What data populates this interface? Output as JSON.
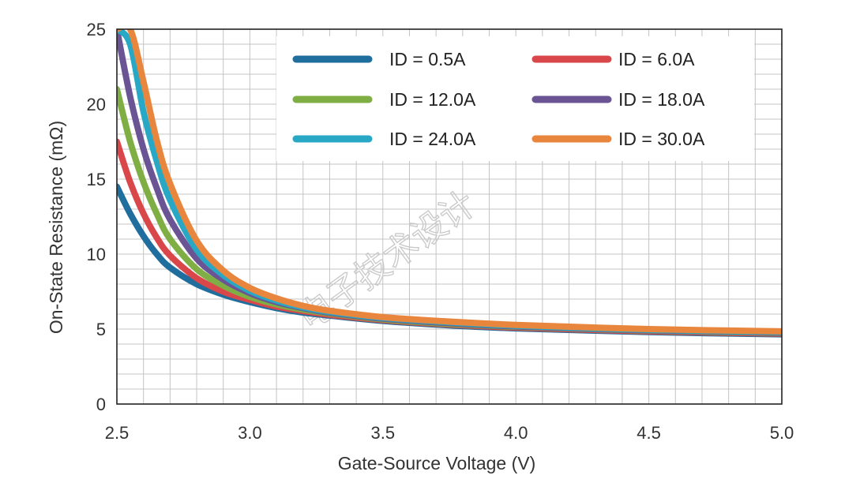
{
  "chart_data": {
    "type": "line",
    "title": "",
    "xlabel": "Gate-Source Voltage (V)",
    "ylabel": "On-State Resistance (mΩ)",
    "xlim": [
      2.5,
      5.0
    ],
    "ylim": [
      0,
      25
    ],
    "x_ticks": [
      "2.5",
      "3.0",
      "3.5",
      "4.0",
      "4.5",
      "5.0"
    ],
    "y_ticks": [
      "0",
      "5",
      "10",
      "15",
      "20",
      "25"
    ],
    "grid": true,
    "legend_position": "top-right",
    "x": [
      2.5,
      2.55,
      2.6,
      2.65,
      2.7,
      2.8,
      2.9,
      3.0,
      3.1,
      3.2,
      3.3,
      3.5,
      3.75,
      4.0,
      4.5,
      5.0
    ],
    "series": [
      {
        "name": "ID = 0.5A",
        "color": "#1f6e9e",
        "values": [
          14.5,
          12.7,
          11.2,
          10.0,
          9.1,
          8.0,
          7.3,
          6.8,
          6.4,
          6.1,
          5.9,
          5.55,
          5.25,
          5.05,
          4.8,
          4.65
        ]
      },
      {
        "name": "ID = 6.0A",
        "color": "#d9474b",
        "values": [
          17.5,
          14.8,
          12.7,
          11.1,
          9.9,
          8.4,
          7.5,
          6.95,
          6.5,
          6.2,
          5.95,
          5.6,
          5.3,
          5.1,
          4.85,
          4.7
        ]
      },
      {
        "name": "ID = 12.0A",
        "color": "#7fae45",
        "values": [
          21.0,
          17.5,
          14.8,
          12.7,
          11.0,
          9.0,
          7.9,
          7.15,
          6.65,
          6.3,
          6.05,
          5.65,
          5.35,
          5.15,
          4.9,
          4.75
        ]
      },
      {
        "name": "ID = 18.0A",
        "color": "#6b5494",
        "values": [
          25.0,
          20.5,
          17.0,
          14.4,
          12.3,
          9.7,
          8.3,
          7.4,
          6.8,
          6.4,
          6.1,
          5.7,
          5.4,
          5.18,
          4.92,
          4.77
        ]
      },
      {
        "name": "ID = 24.0A",
        "color": "#28a8c4",
        "values": [
          25.0,
          24.0,
          19.5,
          16.2,
          13.6,
          10.3,
          8.6,
          7.55,
          6.9,
          6.45,
          6.15,
          5.75,
          5.45,
          5.22,
          4.95,
          4.8
        ]
      },
      {
        "name": "ID = 30.0A",
        "color": "#e8863e",
        "values": [
          25.0,
          25.0,
          21.5,
          17.6,
          14.7,
          10.9,
          8.9,
          7.75,
          7.05,
          6.55,
          6.22,
          5.8,
          5.5,
          5.28,
          5.0,
          4.85
        ]
      }
    ]
  },
  "watermark": "电子技术设计"
}
